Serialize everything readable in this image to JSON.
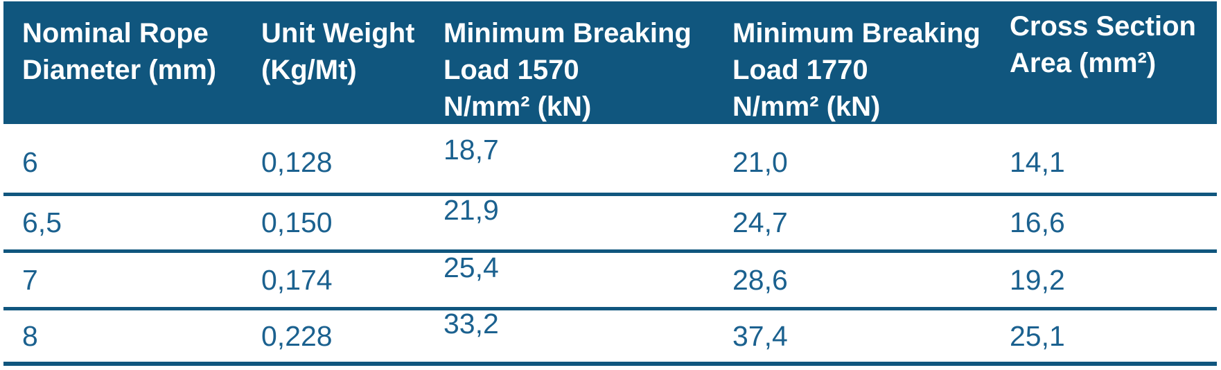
{
  "colors": {
    "header_bg": "#10567E",
    "header_text": "#FFFFFF",
    "data_text": "#1B618F",
    "line": "#10567E",
    "page_bg": "#FFFFFF"
  },
  "table": {
    "columns": [
      {
        "label": "Nominal Rope\nDiameter (mm)"
      },
      {
        "label": "Unit Weight\n(Kg/Mt)"
      },
      {
        "label": "Minimum Breaking\nLoad 1570\nN/mm² (kN)"
      },
      {
        "label": "Minimum Breaking\nLoad 1770\nN/mm² (kN)"
      },
      {
        "label": "Cross Section\nArea (mm²)"
      }
    ],
    "rows": [
      {
        "cells": [
          "6",
          "0,128",
          "18,7",
          "21,0",
          "14,1"
        ]
      },
      {
        "cells": [
          "6,5",
          "0,150",
          "21,9",
          "24,7",
          "16,6"
        ]
      },
      {
        "cells": [
          "7",
          "0,174",
          "25,4",
          "28,6",
          "19,2"
        ]
      },
      {
        "cells": [
          "8",
          "0,228",
          "33,2",
          "37,4",
          "25,1"
        ]
      }
    ]
  }
}
